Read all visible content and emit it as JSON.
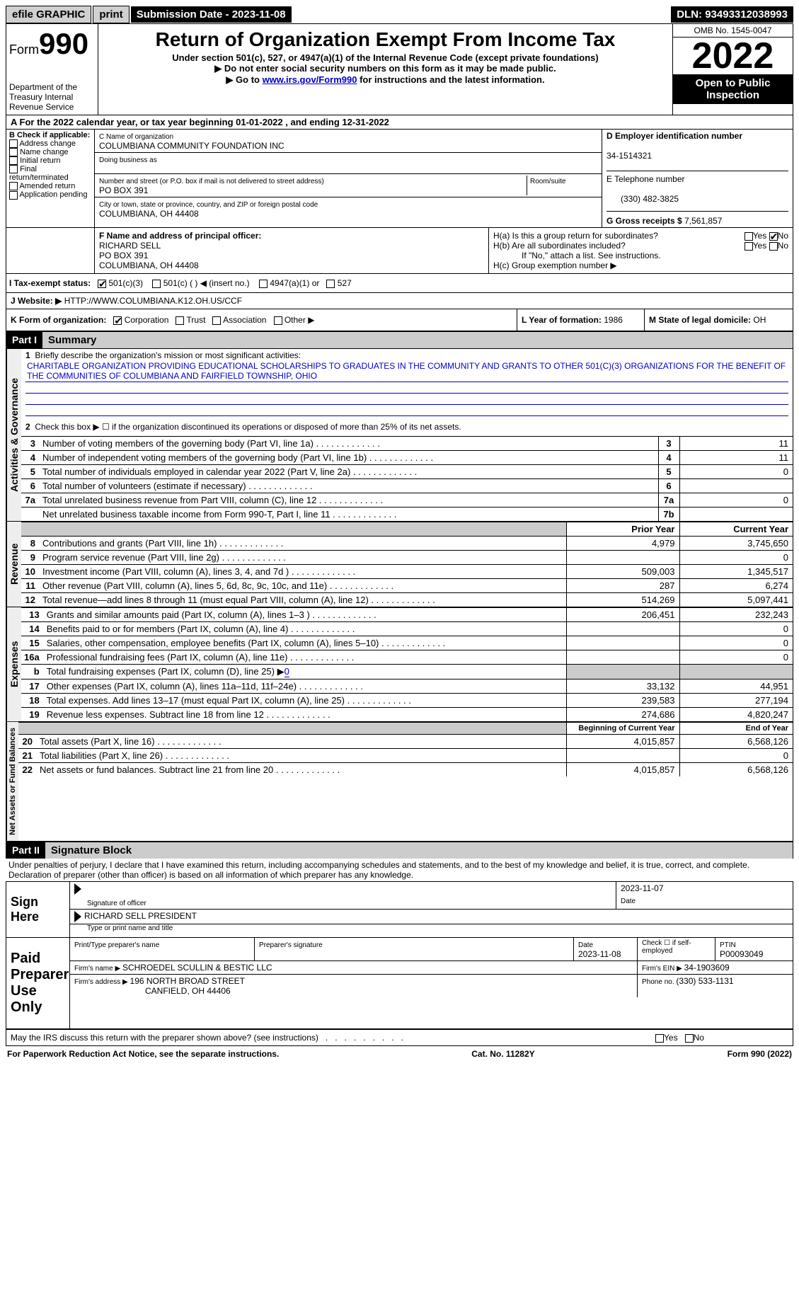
{
  "topbar": {
    "efile": "efile GRAPHIC",
    "print": "print",
    "submission_label": "Submission Date - 2023-11-08",
    "dln": "DLN: 93493312038993"
  },
  "header": {
    "form_prefix": "Form",
    "form_number": "990",
    "dept": "Department of the Treasury\nInternal Revenue Service",
    "title": "Return of Organization Exempt From Income Tax",
    "subtitle1": "Under section 501(c), 527, or 4947(a)(1) of the Internal Revenue Code (except private foundations)",
    "subtitle2": "▶ Do not enter social security numbers on this form as it may be made public.",
    "subtitle3_prefix": "▶ Go to ",
    "subtitle3_link": "www.irs.gov/Form990",
    "subtitle3_suffix": " for instructions and the latest information.",
    "omb": "OMB No. 1545-0047",
    "year": "2022",
    "otp": "Open to Public Inspection"
  },
  "A": {
    "text": "A For the 2022 calendar year, or tax year beginning 01-01-2022   , and ending 12-31-2022"
  },
  "B": {
    "label": "B Check if applicable:",
    "opts": [
      "Address change",
      "Name change",
      "Initial return",
      "Final return/terminated",
      "Amended return",
      "Application pending"
    ]
  },
  "C": {
    "name_label": "C Name of organization",
    "name": "COLUMBIANA COMMUNITY FOUNDATION INC",
    "dba_label": "Doing business as",
    "dba": "",
    "street_label": "Number and street (or P.O. box if mail is not delivered to street address)",
    "room_label": "Room/suite",
    "street": "PO BOX 391",
    "city_label": "City or town, state or province, country, and ZIP or foreign postal code",
    "city": "COLUMBIANA, OH  44408"
  },
  "D": {
    "label": "D Employer identification number",
    "value": "34-1514321"
  },
  "E": {
    "label": "E Telephone number",
    "value": "(330) 482-3825"
  },
  "G": {
    "label": "G Gross receipts $ ",
    "value": "7,561,857"
  },
  "F": {
    "label": "F  Name and address of principal officer:",
    "name": "RICHARD SELL",
    "street": "PO BOX 391",
    "city": "COLUMBIANA, OH  44408"
  },
  "H": {
    "a": "H(a)  Is this a group return for subordinates?",
    "b": "H(b)  Are all subordinates included?",
    "b_note": "If \"No,\" attach a list. See instructions.",
    "c": "H(c)  Group exemption number ▶"
  },
  "I": {
    "label": "I     Tax-exempt status:",
    "o1": "501(c)(3)",
    "o2": "501(c) (  ) ◀ (insert no.)",
    "o3": "4947(a)(1) or",
    "o4": "527"
  },
  "J": {
    "label": "J    Website: ▶ ",
    "value": "HTTP://WWW.COLUMBIANA.K12.OH.US/CCF"
  },
  "K": {
    "label": "K Form of organization:",
    "o1": "Corporation",
    "o2": "Trust",
    "o3": "Association",
    "o4": "Other ▶"
  },
  "L": {
    "label": "L Year of formation: ",
    "value": "1986"
  },
  "M": {
    "label": "M State of legal domicile: ",
    "value": "OH"
  },
  "part1": {
    "hdr": "Part I",
    "title": "Summary",
    "l1_label": "Briefly describe the organization's mission or most significant activities:",
    "l1_text": "CHARITABLE ORGANIZATION PROVIDING EDUCATIONAL SCHOLARSHIPS TO GRADUATES IN THE COMMUNITY AND GRANTS TO OTHER 501(C)(3) ORGANIZATIONS FOR THE BENEFIT OF THE COMMUNITIES OF COLUMBIANA AND FAIRFIELD TOWNSHIP, OHIO",
    "l2": "Check this box ▶ ☐  if the organization discontinued its operations or disposed of more than 25% of its net assets.",
    "vlabel_ag": "Activities & Governance",
    "vlabel_rev": "Revenue",
    "vlabel_exp": "Expenses",
    "vlabel_na": "Net Assets or Fund Balances",
    "rows_ag": [
      {
        "n": "3",
        "t": "Number of voting members of the governing body (Part VI, line 1a)",
        "box": "3",
        "v": "11"
      },
      {
        "n": "4",
        "t": "Number of independent voting members of the governing body (Part VI, line 1b)",
        "box": "4",
        "v": "11"
      },
      {
        "n": "5",
        "t": "Total number of individuals employed in calendar year 2022 (Part V, line 2a)",
        "box": "5",
        "v": "0"
      },
      {
        "n": "6",
        "t": "Total number of volunteers (estimate if necessary)",
        "box": "6",
        "v": ""
      },
      {
        "n": "7a",
        "t": "Total unrelated business revenue from Part VIII, column (C), line 12",
        "box": "7a",
        "v": "0"
      },
      {
        "n": "",
        "t": "Net unrelated business taxable income from Form 990-T, Part I, line 11",
        "box": "7b",
        "v": ""
      }
    ],
    "col_prior": "Prior Year",
    "col_current": "Current Year",
    "rows_rev": [
      {
        "n": "8",
        "t": "Contributions and grants (Part VIII, line 1h)",
        "p": "4,979",
        "c": "3,745,650"
      },
      {
        "n": "9",
        "t": "Program service revenue (Part VIII, line 2g)",
        "p": "",
        "c": "0"
      },
      {
        "n": "10",
        "t": "Investment income (Part VIII, column (A), lines 3, 4, and 7d )",
        "p": "509,003",
        "c": "1,345,517"
      },
      {
        "n": "11",
        "t": "Other revenue (Part VIII, column (A), lines 5, 6d, 8c, 9c, 10c, and 11e)",
        "p": "287",
        "c": "6,274"
      },
      {
        "n": "12",
        "t": "Total revenue—add lines 8 through 11 (must equal Part VIII, column (A), line 12)",
        "p": "514,269",
        "c": "5,097,441"
      }
    ],
    "rows_exp": [
      {
        "n": "13",
        "t": "Grants and similar amounts paid (Part IX, column (A), lines 1–3 )",
        "p": "206,451",
        "c": "232,243"
      },
      {
        "n": "14",
        "t": "Benefits paid to or for members (Part IX, column (A), line 4)",
        "p": "",
        "c": "0"
      },
      {
        "n": "15",
        "t": "Salaries, other compensation, employee benefits (Part IX, column (A), lines 5–10)",
        "p": "",
        "c": "0"
      },
      {
        "n": "16a",
        "t": "Professional fundraising fees (Part IX, column (A), line 11e)",
        "p": "",
        "c": "0"
      },
      {
        "n": "b",
        "t": "Total fundraising expenses (Part IX, column (D), line 25) ▶",
        "p": "shade",
        "c": "shade",
        "fund": "0"
      },
      {
        "n": "17",
        "t": "Other expenses (Part IX, column (A), lines 11a–11d, 11f–24e)",
        "p": "33,132",
        "c": "44,951"
      },
      {
        "n": "18",
        "t": "Total expenses. Add lines 13–17 (must equal Part IX, column (A), line 25)",
        "p": "239,583",
        "c": "277,194"
      },
      {
        "n": "19",
        "t": "Revenue less expenses. Subtract line 18 from line 12",
        "p": "274,686",
        "c": "4,820,247"
      }
    ],
    "col_begin": "Beginning of Current Year",
    "col_end": "End of Year",
    "rows_na": [
      {
        "n": "20",
        "t": "Total assets (Part X, line 16)",
        "p": "4,015,857",
        "c": "6,568,126"
      },
      {
        "n": "21",
        "t": "Total liabilities (Part X, line 26)",
        "p": "",
        "c": "0"
      },
      {
        "n": "22",
        "t": "Net assets or fund balances. Subtract line 21 from line 20",
        "p": "4,015,857",
        "c": "6,568,126"
      }
    ]
  },
  "part2": {
    "hdr": "Part II",
    "title": "Signature Block",
    "decl": "Under penalties of perjury, I declare that I have examined this return, including accompanying schedules and statements, and to the best of my knowledge and belief, it is true, correct, and complete. Declaration of preparer (other than officer) is based on all information of which preparer has any knowledge.",
    "sign_here": "Sign Here",
    "sig_officer": "Signature of officer",
    "sig_date": "2023-11-07",
    "date_lbl": "Date",
    "officer_name": "RICHARD SELL  PRESIDENT",
    "type_name": "Type or print name and title",
    "paid": "Paid Preparer Use Only",
    "prep_name_lbl": "Print/Type preparer's name",
    "prep_sig_lbl": "Preparer's signature",
    "prep_date_lbl": "Date",
    "prep_date": "2023-11-08",
    "check_self": "Check ☐ if self-employed",
    "ptin_lbl": "PTIN",
    "ptin": "P00093049",
    "firm_name_lbl": "Firm's name    ▶ ",
    "firm_name": "SCHROEDEL SCULLIN & BESTIC LLC",
    "firm_ein_lbl": "Firm's EIN ▶ ",
    "firm_ein": "34-1903609",
    "firm_addr_lbl": "Firm's address ▶ ",
    "firm_addr1": "196 NORTH BROAD STREET",
    "firm_addr2": "CANFIELD, OH  44406",
    "phone_lbl": "Phone no. ",
    "phone": "(330) 533-1131",
    "discuss": "May the IRS discuss this return with the preparer shown above? (see instructions)",
    "yes": "Yes",
    "no": "No"
  },
  "footer": {
    "left": "For Paperwork Reduction Act Notice, see the separate instructions.",
    "mid": "Cat. No. 11282Y",
    "right": "Form 990 (2022)"
  },
  "colors": {
    "link": "#0000cc",
    "shade": "#cccccc",
    "black": "#000000"
  }
}
